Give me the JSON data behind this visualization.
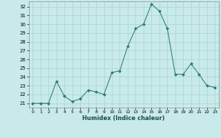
{
  "x": [
    0,
    1,
    2,
    3,
    4,
    5,
    6,
    7,
    8,
    9,
    10,
    11,
    12,
    13,
    14,
    15,
    16,
    17,
    18,
    19,
    20,
    21,
    22,
    23
  ],
  "y": [
    21.0,
    21.0,
    21.0,
    23.5,
    21.8,
    21.2,
    21.5,
    22.5,
    22.3,
    22.0,
    24.5,
    24.7,
    27.5,
    29.5,
    30.0,
    32.3,
    31.5,
    29.5,
    24.3,
    24.3,
    25.5,
    24.3,
    23.0,
    22.8
  ],
  "bg_color": "#c8eaea",
  "line_color": "#2e7d6e",
  "marker_color": "#2e7d6e",
  "grid_color": "#aacfcf",
  "title": "",
  "xlabel": "Humidex (Indice chaleur)",
  "ylabel": "",
  "ylim": [
    20.5,
    32.6
  ],
  "xlim": [
    -0.5,
    23.5
  ],
  "yticks": [
    21,
    22,
    23,
    24,
    25,
    26,
    27,
    28,
    29,
    30,
    31,
    32
  ],
  "xticks": [
    0,
    1,
    2,
    3,
    4,
    5,
    6,
    7,
    8,
    9,
    10,
    11,
    12,
    13,
    14,
    15,
    16,
    17,
    18,
    19,
    20,
    21,
    22,
    23
  ]
}
